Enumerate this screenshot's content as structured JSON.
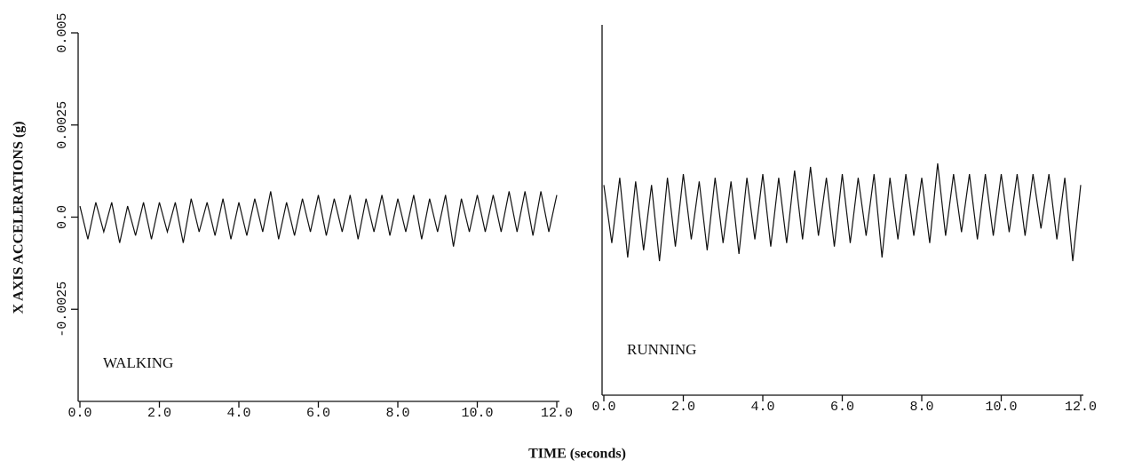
{
  "y_label": "X AXIS ACCELERATIONS (g)",
  "x_label": "TIME (seconds)",
  "chart_data": [
    {
      "type": "line",
      "annotation": "WALKING",
      "x": [
        0,
        0.2,
        0.4,
        0.6,
        0.8,
        1,
        1.2,
        1.4,
        1.6,
        1.8,
        2,
        2.2,
        2.4,
        2.6,
        2.8,
        3,
        3.2,
        3.4,
        3.6,
        3.8,
        4,
        4.2,
        4.4,
        4.6,
        4.8,
        5,
        5.2,
        5.4,
        5.6,
        5.8,
        6,
        6.2,
        6.4,
        6.6,
        6.8,
        7,
        7.2,
        7.4,
        7.6,
        7.8,
        8,
        8.2,
        8.4,
        8.6,
        8.8,
        9,
        9.2,
        9.4,
        9.6,
        9.8,
        10,
        10.2,
        10.4,
        10.6,
        10.8,
        11,
        11.2,
        11.4,
        11.6,
        11.8,
        12
      ],
      "values": [
        0.0003,
        -0.0006,
        0.0004,
        -0.0004,
        0.0004,
        -0.0007,
        0.0003,
        -0.0005,
        0.0004,
        -0.0006,
        0.0004,
        -0.0004,
        0.0004,
        -0.0007,
        0.0005,
        -0.0004,
        0.0004,
        -0.0005,
        0.0005,
        -0.0006,
        0.0004,
        -0.0005,
        0.0005,
        -0.0004,
        0.0007,
        -0.0006,
        0.0004,
        -0.0005,
        0.0005,
        -0.0004,
        0.0006,
        -0.0005,
        0.0005,
        -0.0004,
        0.0006,
        -0.0006,
        0.0005,
        -0.0004,
        0.0006,
        -0.0005,
        0.0005,
        -0.0004,
        0.0006,
        -0.0006,
        0.0005,
        -0.0004,
        0.0006,
        -0.0008,
        0.0005,
        -0.0004,
        0.0006,
        -0.0004,
        0.0006,
        -0.0004,
        0.0007,
        -0.0004,
        0.0007,
        -0.0005,
        0.0007,
        -0.0004,
        0.0006
      ],
      "color": "#111111",
      "xlim": [
        0,
        12
      ],
      "xticks": [
        {
          "value": 0,
          "label": "0.0"
        },
        {
          "value": 2,
          "label": "2.0"
        },
        {
          "value": 4,
          "label": "4.0"
        },
        {
          "value": 6,
          "label": "6.0"
        },
        {
          "value": 8,
          "label": "8.0"
        },
        {
          "value": 10,
          "label": "10.0"
        },
        {
          "value": 12,
          "label": "12.0"
        }
      ],
      "ylim": [
        -0.005,
        0.005
      ],
      "yticks": [
        -0.0025,
        {
          "value": 0,
          "label": "0.0"
        },
        0.0025,
        0.005
      ]
    },
    {
      "type": "line",
      "annotation": "RUNNING",
      "x": [
        0,
        0.2,
        0.4,
        0.6,
        0.8,
        1,
        1.2,
        1.4,
        1.6,
        1.8,
        2,
        2.2,
        2.4,
        2.6,
        2.8,
        3,
        3.2,
        3.4,
        3.6,
        3.8,
        4,
        4.2,
        4.4,
        4.6,
        4.8,
        5,
        5.2,
        5.4,
        5.6,
        5.8,
        6,
        6.2,
        6.4,
        6.6,
        6.8,
        7,
        7.2,
        7.4,
        7.6,
        7.8,
        8,
        8.2,
        8.4,
        8.6,
        8.8,
        9,
        9.2,
        9.4,
        9.6,
        9.8,
        10,
        10.2,
        10.4,
        10.6,
        10.8,
        11,
        11.2,
        11.4,
        11.6,
        11.8,
        12
      ],
      "values": [
        0.0008,
        -0.0008,
        0.001,
        -0.0012,
        0.0009,
        -0.001,
        0.0008,
        -0.0013,
        0.001,
        -0.0009,
        0.0011,
        -0.0007,
        0.0009,
        -0.001,
        0.001,
        -0.0008,
        0.0009,
        -0.0011,
        0.001,
        -0.0007,
        0.0011,
        -0.0009,
        0.001,
        -0.0008,
        0.0012,
        -0.0007,
        0.0013,
        -0.0006,
        0.001,
        -0.0009,
        0.0011,
        -0.0008,
        0.001,
        -0.0006,
        0.0011,
        -0.0012,
        0.001,
        -0.0007,
        0.0011,
        -0.0006,
        0.001,
        -0.0008,
        0.0014,
        -0.0006,
        0.0011,
        -0.0005,
        0.0011,
        -0.0007,
        0.0011,
        -0.0006,
        0.0011,
        -0.0005,
        0.0011,
        -0.0006,
        0.0011,
        -0.0004,
        0.0011,
        -0.0007,
        0.001,
        -0.0013,
        0.0008
      ],
      "color": "#111111",
      "xlim": [
        0,
        12
      ],
      "xticks": [
        {
          "value": 0,
          "label": "0.0"
        },
        {
          "value": 2,
          "label": "2.0"
        },
        {
          "value": 4,
          "label": "4.0"
        },
        {
          "value": 6,
          "label": "6.0"
        },
        {
          "value": 8,
          "label": "8.0"
        },
        {
          "value": 10,
          "label": "10.0"
        },
        {
          "value": 12,
          "label": "12.0"
        }
      ],
      "ylim": [
        -0.005,
        0.005
      ]
    }
  ]
}
